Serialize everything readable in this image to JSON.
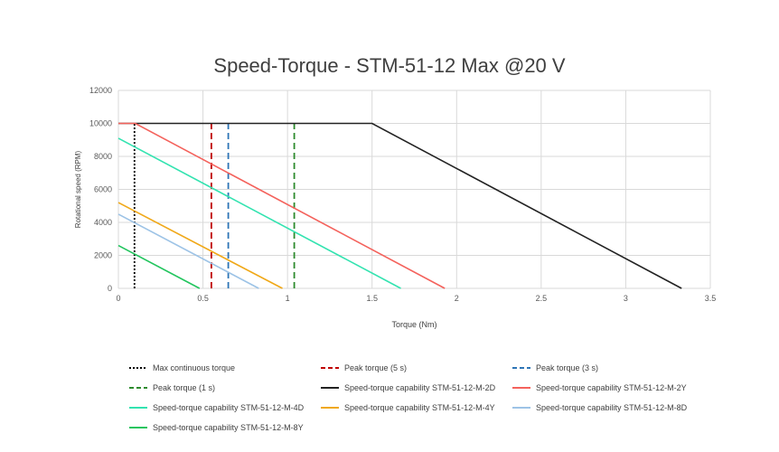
{
  "chart_data": {
    "type": "line",
    "title": "Speed-Torque - STM-51-12 Max  @20 V",
    "xlabel": "Torque (Nm)",
    "ylabel": "Rotational speed (RPM)",
    "xlim": [
      0,
      3.5
    ],
    "ylim": [
      0,
      12000
    ],
    "x_ticks": [
      "0",
      "0.5",
      "1",
      "1.5",
      "2",
      "2.5",
      "3",
      "3.5"
    ],
    "y_ticks": [
      "0",
      "2000",
      "4000",
      "6000",
      "8000",
      "10000",
      "12000"
    ],
    "grid": true,
    "legend_position": "bottom",
    "series": [
      {
        "name": "Max continuous torque",
        "color": "#000000",
        "style": "dotted",
        "x": [
          0.095,
          0.095
        ],
        "y": [
          0,
          10000
        ]
      },
      {
        "name": "Peak torque (5 s)",
        "color": "#c00000",
        "style": "dashed",
        "x": [
          0.55,
          0.55
        ],
        "y": [
          0,
          10000
        ]
      },
      {
        "name": "Peak torque (3 s)",
        "color": "#2e75b6",
        "style": "dashed",
        "x": [
          0.65,
          0.65
        ],
        "y": [
          0,
          10000
        ]
      },
      {
        "name": "Peak torque (1 s)",
        "color": "#2e8b2e",
        "style": "dashed",
        "x": [
          1.04,
          1.04
        ],
        "y": [
          0,
          10000
        ]
      },
      {
        "name": "Speed-torque capability STM-51-12-M-2D",
        "color": "#222222",
        "style": "solid",
        "x": [
          0,
          1.5,
          3.33
        ],
        "y": [
          10000,
          10000,
          0
        ]
      },
      {
        "name": "Speed-torque capability STM-51-12-M-2Y",
        "color": "#f4625c",
        "style": "solid",
        "x": [
          0,
          0.1,
          1.93
        ],
        "y": [
          10000,
          10000,
          0
        ]
      },
      {
        "name": "Speed-torque capability STM-51-12-M-4D",
        "color": "#33e3b0",
        "style": "solid",
        "x": [
          0,
          1.67
        ],
        "y": [
          9100,
          0
        ]
      },
      {
        "name": "Speed-torque capability STM-51-12-M-4Y",
        "color": "#f0a818",
        "style": "solid",
        "x": [
          0,
          0.97
        ],
        "y": [
          5200,
          0
        ]
      },
      {
        "name": "Speed-torque capability STM-51-12-M-8D",
        "color": "#9dc3e6",
        "style": "solid",
        "x": [
          0,
          0.83
        ],
        "y": [
          4500,
          0
        ]
      },
      {
        "name": "Speed-torque capability STM-51-12-M-8Y",
        "color": "#22c55e",
        "style": "solid",
        "x": [
          0,
          0.48
        ],
        "y": [
          2600,
          0
        ]
      }
    ]
  }
}
